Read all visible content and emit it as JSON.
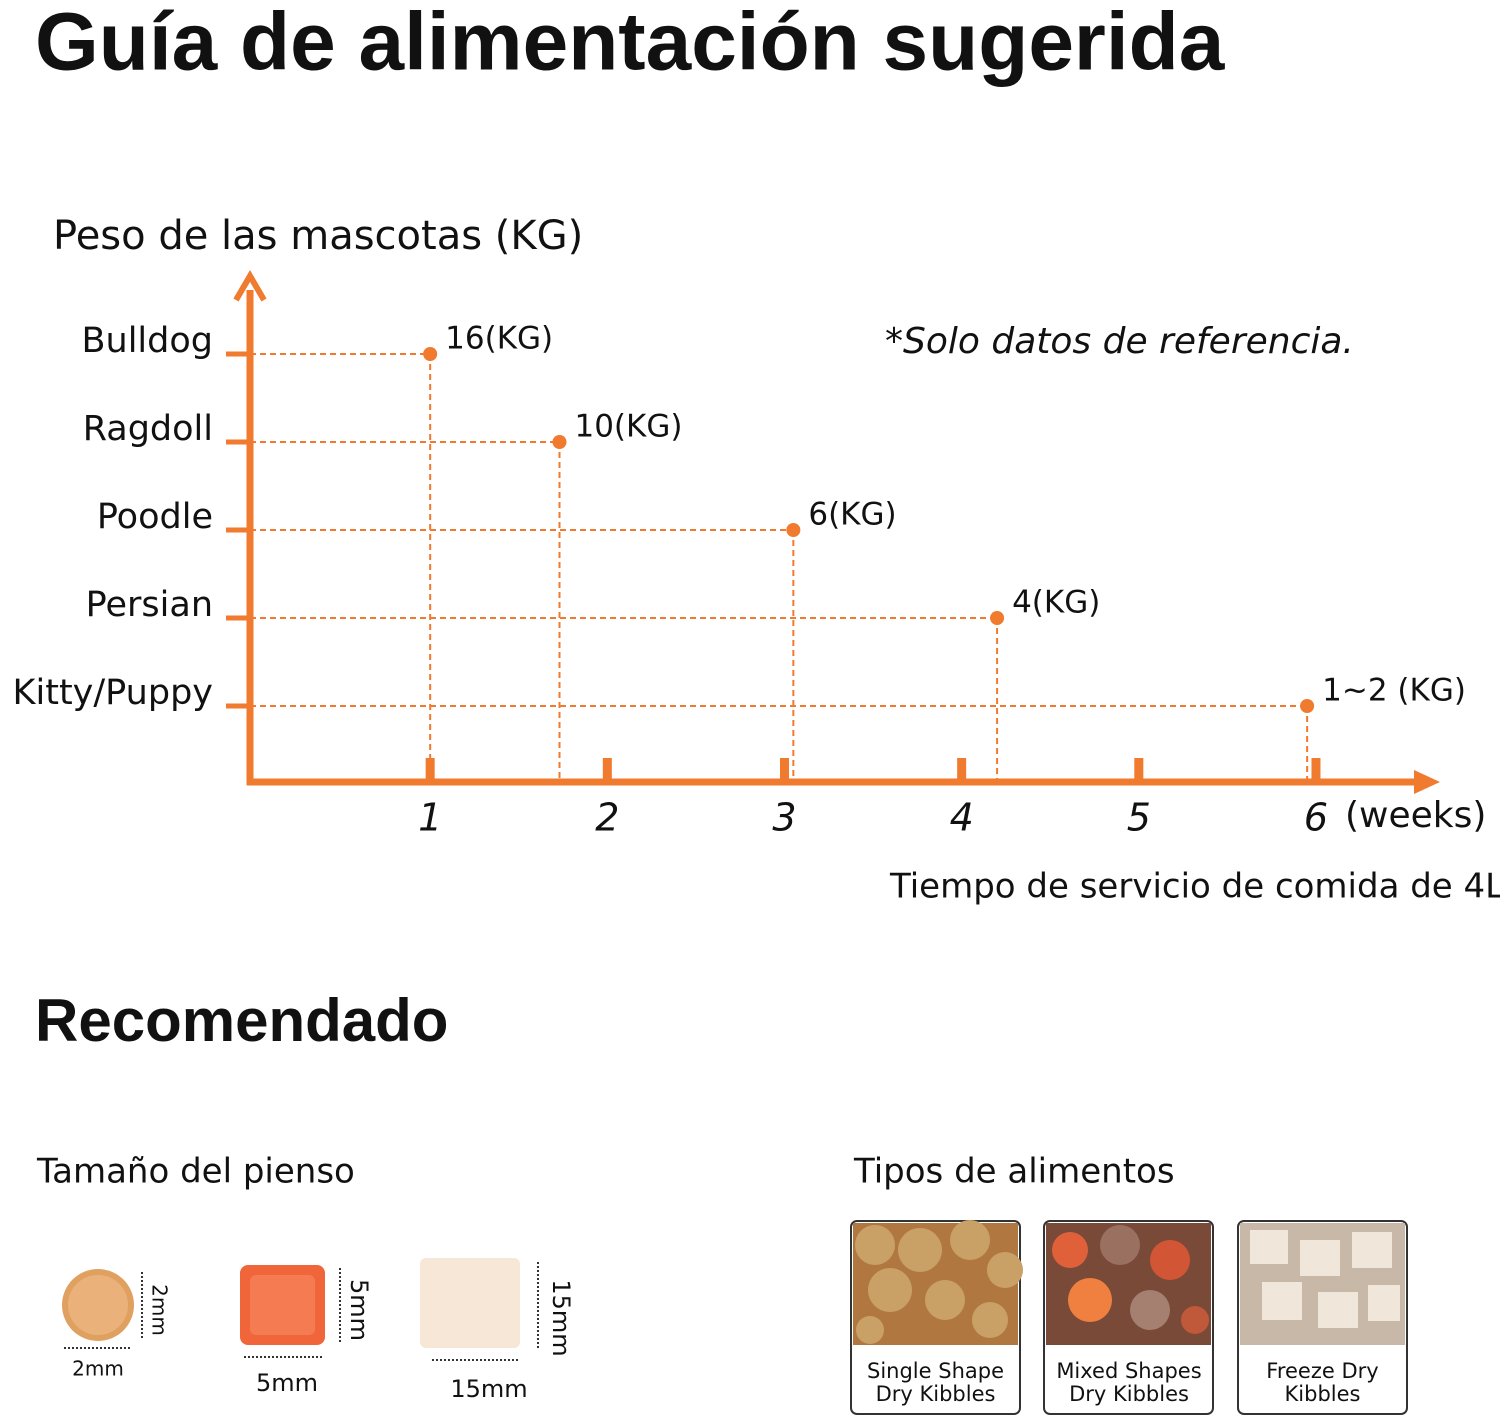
{
  "title": "Guía de alimentación sugerida",
  "chart_data": {
    "type": "scatter",
    "y_axis_label": "Peso de las mascotas (KG)",
    "x_axis_label": "Tiempo de servicio de comida de 4L",
    "x_unit": "(weeks)",
    "note": "*Solo datos de referencia.",
    "categories": [
      "Bulldog",
      "Ragdoll",
      "Poodle",
      "Persian",
      "Kitty/Puppy"
    ],
    "values": [
      1,
      1.73,
      3.05,
      4.2,
      5.95
    ],
    "weights": [
      "16(KG)",
      "10(KG)",
      "6(KG)",
      "4(KG)",
      "1~2 (KG)"
    ],
    "color": "#f07a2e",
    "xlim": [
      0,
      6.7
    ],
    "xticks": [
      1,
      2,
      3,
      4,
      5,
      6
    ]
  },
  "recommended": {
    "title": "Recomendado",
    "kibble_size": {
      "title": "Tamaño del pienso",
      "items": [
        {
          "width": "2mm",
          "height": "2mm"
        },
        {
          "width": "5mm",
          "height": "5mm"
        },
        {
          "width": "15mm",
          "height": "15mm"
        }
      ]
    },
    "food_types": {
      "title": "Tipos de alimentos",
      "items": [
        [
          "Single Shape",
          "Dry Kibbles"
        ],
        [
          "Mixed Shapes",
          "Dry Kibbles"
        ],
        [
          "Freeze Dry",
          "Kibbles"
        ]
      ]
    }
  }
}
